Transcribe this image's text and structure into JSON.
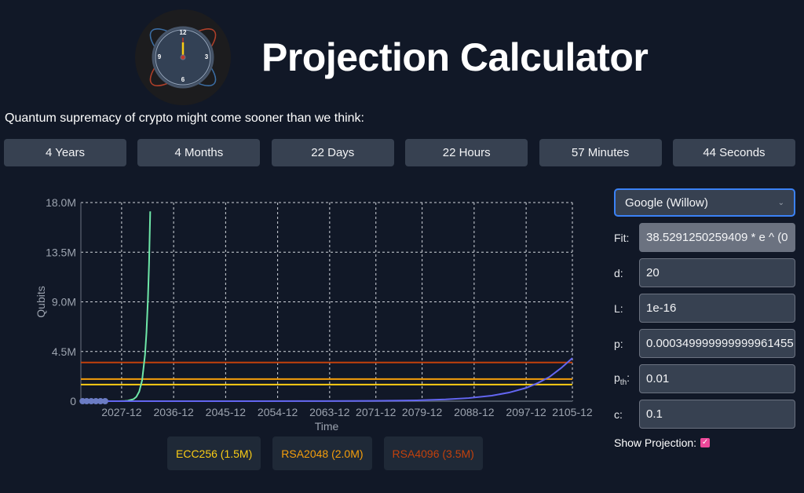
{
  "header": {
    "title": "Projection Calculator",
    "logo": "quantum-clock-logo"
  },
  "tagline": "Quantum supremacy of crypto might come sooner than we think:",
  "countdown": [
    "4 Years",
    "4 Months",
    "22 Days",
    "22 Hours",
    "57 Minutes",
    "44 Seconds"
  ],
  "controls": {
    "device": "Google (Willow)",
    "fields": [
      {
        "label": "Fit:",
        "value": "38.5291250259409 * e ^ (0",
        "readonly": true
      },
      {
        "label": "d:",
        "value": "20"
      },
      {
        "label": "L:",
        "value": "1e-16"
      },
      {
        "label": "p:",
        "value": "0.000349999999999961455"
      },
      {
        "label": "pth",
        "value": "0.01"
      },
      {
        "label": "c:",
        "value": "0.1"
      }
    ],
    "show_projection_label": "Show Projection:",
    "show_projection": true
  },
  "legend": [
    {
      "label": "ECC256 (1.5M)",
      "color": "#facc15"
    },
    {
      "label": "RSA2048 (2.0M)",
      "color": "#f59e0b"
    },
    {
      "label": "RSA4096 (3.5M)",
      "color": "#c2410c"
    }
  ],
  "chart_data": {
    "type": "line",
    "xlabel": "Time",
    "ylabel": "Qubits",
    "xlim": [
      2020.9,
      2105.95
    ],
    "ylim": [
      0,
      18000000
    ],
    "yticks": [
      {
        "v": 0,
        "label": "0"
      },
      {
        "v": 4500000,
        "label": "4.5M"
      },
      {
        "v": 9000000,
        "label": "9.0M"
      },
      {
        "v": 13500000,
        "label": "13.5M"
      },
      {
        "v": 18000000,
        "label": "18.0M"
      }
    ],
    "xticks": [
      {
        "v": 2027.95,
        "label": "2027-12"
      },
      {
        "v": 2036.95,
        "label": "2036-12"
      },
      {
        "v": 2045.95,
        "label": "2045-12"
      },
      {
        "v": 2054.95,
        "label": "2054-12"
      },
      {
        "v": 2063.95,
        "label": "2063-12"
      },
      {
        "v": 2071.95,
        "label": "2071-12"
      },
      {
        "v": 2079.95,
        "label": "2079-12"
      },
      {
        "v": 2088.95,
        "label": "2088-12"
      },
      {
        "v": 2097.95,
        "label": "2097-12"
      },
      {
        "v": 2105.95,
        "label": "2105-12"
      }
    ],
    "grid": true,
    "thresholds": [
      {
        "value": 1500000,
        "color": "#facc15"
      },
      {
        "value": 2000000,
        "color": "#f59e0b"
      },
      {
        "value": 3500000,
        "color": "#c2410c"
      }
    ],
    "series": [
      {
        "color": "#6ee7a8",
        "points": [
          [
            2027.5,
            0
          ],
          [
            2028.5,
            15000
          ],
          [
            2029,
            37000
          ],
          [
            2030,
            180000
          ],
          [
            2030.5,
            390000
          ],
          [
            2031,
            870000
          ],
          [
            2031.5,
            1900000
          ],
          [
            2032,
            4200000
          ],
          [
            2032.25,
            6200000
          ],
          [
            2032.5,
            9200000
          ],
          [
            2032.7,
            12500000
          ],
          [
            2032.9,
            17200000
          ]
        ]
      },
      {
        "color": "#6366f1",
        "points": [
          [
            2020.9,
            0
          ],
          [
            2050,
            300
          ],
          [
            2063,
            7000
          ],
          [
            2071,
            23000
          ],
          [
            2079,
            75000
          ],
          [
            2084,
            160000
          ],
          [
            2088,
            280000
          ],
          [
            2092,
            500000
          ],
          [
            2095,
            780000
          ],
          [
            2097.95,
            1200000
          ],
          [
            2100,
            1650000
          ],
          [
            2102,
            2200000
          ],
          [
            2104,
            3000000
          ],
          [
            2105.95,
            3900000
          ]
        ]
      }
    ],
    "markers": {
      "color": "#6b7cc4",
      "points": [
        [
          2021.2,
          0
        ],
        [
          2021.9,
          0
        ],
        [
          2022.7,
          0
        ],
        [
          2023.5,
          0
        ],
        [
          2024.3,
          0
        ],
        [
          2025.1,
          0
        ]
      ]
    }
  }
}
